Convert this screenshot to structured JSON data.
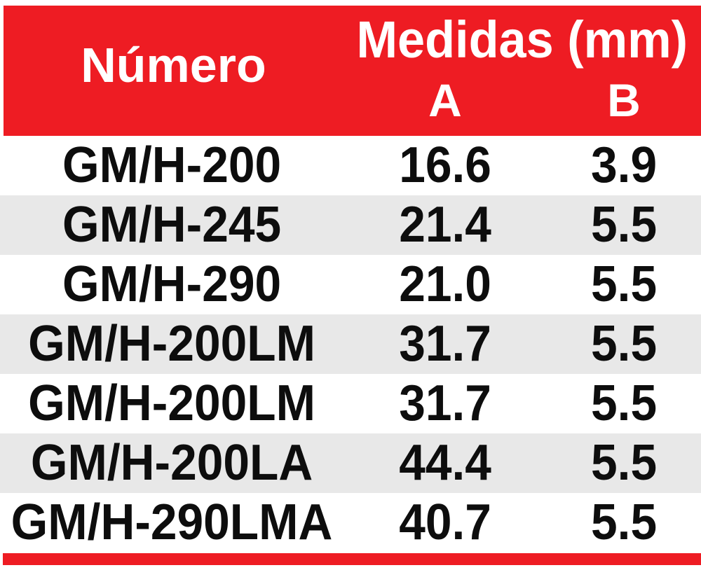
{
  "table": {
    "header": {
      "col_numero": "Número",
      "col_medidas": "Medidas (mm)",
      "col_a": "A",
      "col_b": "B"
    },
    "rows": [
      {
        "numero": "GM/H-200",
        "a": "16.6",
        "b": "3.9"
      },
      {
        "numero": "GM/H-245",
        "a": "21.4",
        "b": "5.5"
      },
      {
        "numero": "GM/H-290",
        "a": "21.0",
        "b": "5.5"
      },
      {
        "numero": "GM/H-200LM",
        "a": "31.7",
        "b": "5.5"
      },
      {
        "numero": "GM/H-200LM",
        "a": "31.7",
        "b": "5.5"
      },
      {
        "numero": "GM/H-200LA",
        "a": "44.4",
        "b": "5.5"
      },
      {
        "numero": "GM/H-290LMA",
        "a": "40.7",
        "b": "5.5"
      }
    ],
    "colors": {
      "header_bg": "#EE1C23",
      "header_text": "#FFFFFF",
      "row_bg": "#FFFFFF",
      "row_alt_bg": "#E8E8E8",
      "cell_text": "#0D0D0D",
      "footer_bar": "#EE1C23"
    }
  }
}
